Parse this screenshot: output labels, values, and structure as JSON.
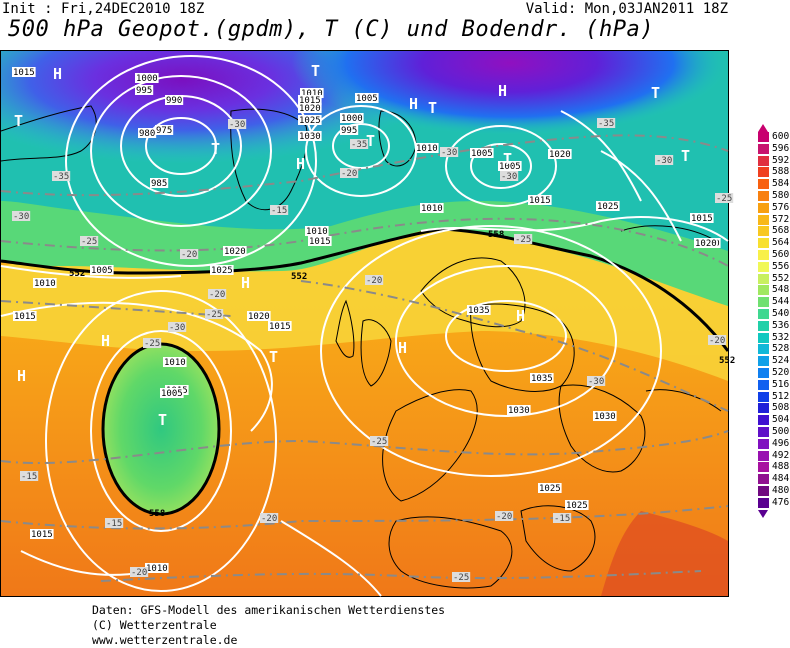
{
  "header": {
    "init": "Init : Fri,24DEC2010 18Z",
    "valid": "Valid: Mon,03JAN2011 18Z",
    "title": "500 hPa Geopot.(gpdm), T (C) und Bodendr. (hPa)"
  },
  "legend": {
    "values": [
      "600",
      "596",
      "592",
      "588",
      "584",
      "580",
      "576",
      "572",
      "568",
      "564",
      "560",
      "556",
      "552",
      "548",
      "544",
      "540",
      "536",
      "532",
      "528",
      "524",
      "520",
      "516",
      "512",
      "508",
      "504",
      "500",
      "496",
      "492",
      "488",
      "484",
      "480",
      "476"
    ],
    "colors": [
      "#c8006e",
      "#c8146e",
      "#e03040",
      "#f04020",
      "#f86010",
      "#f88010",
      "#f8a010",
      "#f8b818",
      "#f8c820",
      "#f8e030",
      "#f8f048",
      "#f0f858",
      "#c8f060",
      "#a0e860",
      "#70e070",
      "#40d890",
      "#20d0a8",
      "#10c8c0",
      "#10b8d8",
      "#10a0e8",
      "#1080f0",
      "#1060f0",
      "#1040e8",
      "#2020d8",
      "#4010d0",
      "#6010c8",
      "#8010c0",
      "#9810b0",
      "#a810a0",
      "#901090",
      "#700880",
      "#5a0090"
    ]
  },
  "map": {
    "pressure_labels": [
      "1015",
      "1000",
      "995",
      "990",
      "985",
      "980",
      "975",
      "1010",
      "1015",
      "1020",
      "1025",
      "1030",
      "1005",
      "1000",
      "995",
      "1010",
      "1005",
      "1020",
      "1015",
      "1025",
      "1015",
      "1020",
      "1010",
      "1005",
      "1010",
      "1015",
      "1025",
      "1020",
      "1015",
      "1020",
      "1015",
      "1005",
      "1010",
      "1010",
      "1015",
      "1035",
      "1035",
      "1030",
      "1030",
      "1025",
      "1025",
      "1015",
      "1010",
      "1005",
      "1020"
    ],
    "temp_labels": [
      "-30",
      "-35",
      "-30",
      "-25",
      "-20",
      "-20",
      "-25",
      "-20",
      "-25",
      "-30",
      "-35",
      "-30",
      "-25",
      "-20",
      "-30",
      "-25",
      "-20",
      "-15",
      "-20",
      "-15",
      "-15",
      "-20",
      "-25",
      "-20",
      "-15",
      "-30",
      "-35",
      "-30",
      "-25"
    ],
    "geopot_labels": [
      "552",
      "552",
      "558",
      "558",
      "552"
    ],
    "high_marks": [
      "H",
      "H",
      "H",
      "H",
      "H",
      "H",
      "H",
      "H",
      "H"
    ],
    "low_marks": [
      "T",
      "T",
      "T",
      "T",
      "T",
      "T",
      "T",
      "T",
      "T",
      "T",
      "T"
    ]
  },
  "footer": {
    "line1": "Daten: GFS-Modell des amerikanischen Wetterdienstes",
    "line2": "(C) Wetterzentrale",
    "line3": "www.wetterzentrale.de"
  }
}
